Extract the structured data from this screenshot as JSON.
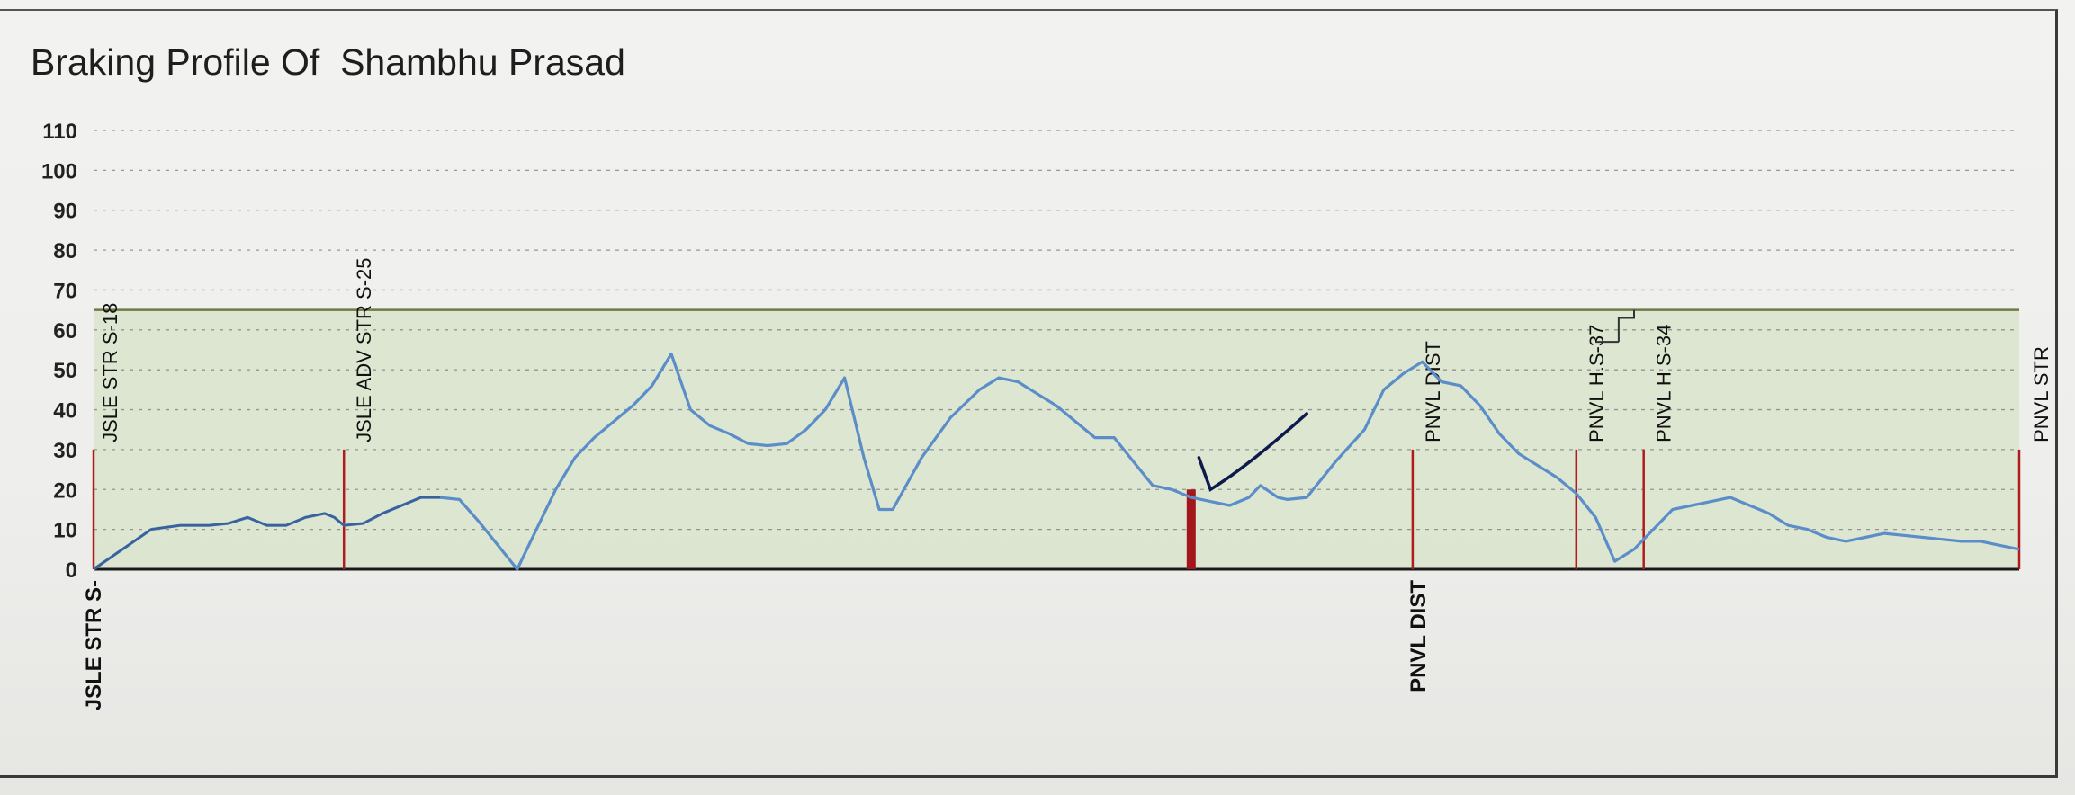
{
  "chart_data": {
    "type": "line",
    "title": "Braking Profile Of  Shambhu Prasad",
    "xlabel": "",
    "ylabel": "",
    "ylim": [
      0,
      110
    ],
    "yticks": [
      0,
      10,
      20,
      30,
      40,
      50,
      60,
      70,
      80,
      90,
      100,
      110
    ],
    "grid": true,
    "speed_limit": 65,
    "colors": {
      "line": "#5b8ec9",
      "line_dark": "#2d4f86",
      "band": "#d9e4cb",
      "limit": "#6f7a45",
      "marker": "#b01c1c",
      "marker_fill": "#a3161c",
      "annotation": "#0e1a4d"
    },
    "series": [
      {
        "values": [
          [
            0,
            0
          ],
          [
            1.5,
            5
          ],
          [
            3,
            10
          ],
          [
            4.5,
            11
          ],
          [
            6,
            11
          ],
          [
            7,
            11.5
          ],
          [
            8,
            13
          ],
          [
            9,
            11
          ],
          [
            10,
            11
          ],
          [
            11,
            13
          ],
          [
            12,
            14
          ],
          [
            12.5,
            13
          ],
          [
            13,
            11
          ],
          [
            14,
            11.5
          ],
          [
            15,
            14
          ],
          [
            16,
            16
          ],
          [
            17,
            18
          ],
          [
            18,
            18
          ],
          [
            19,
            17.5
          ],
          [
            20,
            12
          ],
          [
            21,
            6
          ],
          [
            22,
            0
          ],
          [
            23,
            10
          ],
          [
            24,
            20
          ],
          [
            25,
            28
          ],
          [
            26,
            33
          ],
          [
            27,
            37
          ],
          [
            28,
            41
          ],
          [
            29,
            46
          ],
          [
            30,
            54
          ],
          [
            31,
            40
          ],
          [
            32,
            36
          ],
          [
            33,
            34
          ],
          [
            34,
            31.5
          ],
          [
            35,
            31
          ],
          [
            36,
            31.5
          ],
          [
            37,
            35
          ],
          [
            38,
            40
          ],
          [
            39,
            48
          ],
          [
            40,
            28
          ],
          [
            40.8,
            15
          ],
          [
            41.5,
            15
          ],
          [
            43,
            28
          ],
          [
            44.5,
            38
          ],
          [
            46,
            45
          ],
          [
            47,
            48
          ],
          [
            48,
            47
          ],
          [
            49,
            44
          ],
          [
            50,
            41
          ],
          [
            51,
            37
          ],
          [
            52,
            33
          ],
          [
            53,
            33
          ],
          [
            54,
            27
          ],
          [
            55,
            21
          ],
          [
            56,
            20
          ],
          [
            57,
            18
          ],
          [
            58,
            17
          ],
          [
            59,
            16
          ],
          [
            60,
            18
          ],
          [
            60.6,
            21
          ],
          [
            61.5,
            18
          ],
          [
            62,
            17.5
          ],
          [
            63,
            18
          ],
          [
            64.5,
            27
          ],
          [
            66,
            35
          ],
          [
            67,
            45
          ],
          [
            68,
            49
          ],
          [
            69,
            52
          ],
          [
            70,
            47
          ],
          [
            71,
            46
          ],
          [
            72,
            41
          ],
          [
            73,
            34
          ],
          [
            74,
            29
          ],
          [
            75,
            26
          ],
          [
            76,
            23
          ],
          [
            77,
            19
          ],
          [
            78,
            13
          ],
          [
            79,
            2
          ],
          [
            80,
            5
          ],
          [
            81,
            10
          ],
          [
            82,
            15
          ],
          [
            83,
            16
          ],
          [
            84,
            17
          ],
          [
            85,
            18
          ],
          [
            86,
            16
          ],
          [
            87,
            14
          ],
          [
            88,
            11
          ],
          [
            89,
            10
          ],
          [
            90,
            8
          ],
          [
            91,
            7
          ],
          [
            92,
            8
          ],
          [
            93,
            9
          ],
          [
            94,
            8.5
          ],
          [
            95,
            8
          ],
          [
            96,
            7.5
          ],
          [
            97,
            7
          ],
          [
            98,
            7
          ],
          [
            99,
            6
          ],
          [
            100,
            5
          ]
        ]
      }
    ],
    "location_markers": [
      {
        "x": 0,
        "height": 30,
        "label": "JSLE STR S-18",
        "label_below": "JSLE STR S-"
      },
      {
        "x": 13,
        "height": 30,
        "label": "JSLE ADV STR S-25"
      },
      {
        "x": 57,
        "height": 20,
        "label": ""
      },
      {
        "x": 68.5,
        "height": 30,
        "label": "PNVL DIST",
        "label_below": "PNVL DIST"
      },
      {
        "x": 77,
        "height": 30,
        "label": "PNVL H.S-37"
      },
      {
        "x": 80.5,
        "height": 30,
        "label": "PNVL H S-34"
      },
      {
        "x": 100,
        "height": 30,
        "label": "PNVL STR"
      }
    ]
  }
}
